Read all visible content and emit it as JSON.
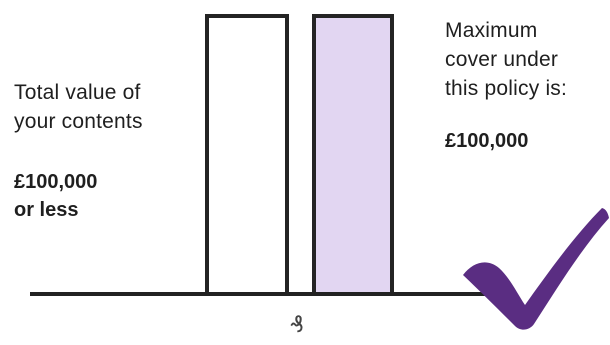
{
  "diagram": {
    "left_text": {
      "label": "Total value of\nyour contents",
      "value": "£100,000\nor less"
    },
    "right_text": {
      "label": "Maximum\ncover under\nthis policy is:",
      "value": "£100,000"
    },
    "axis_mark": "₰"
  },
  "colors": {
    "bar_contents_fill": "#ffffff",
    "bar_cover_fill": "#e2d6f2",
    "outline": "#242424",
    "tick": "#5a2d82"
  },
  "icons": {
    "tick": "checkmark-icon"
  }
}
